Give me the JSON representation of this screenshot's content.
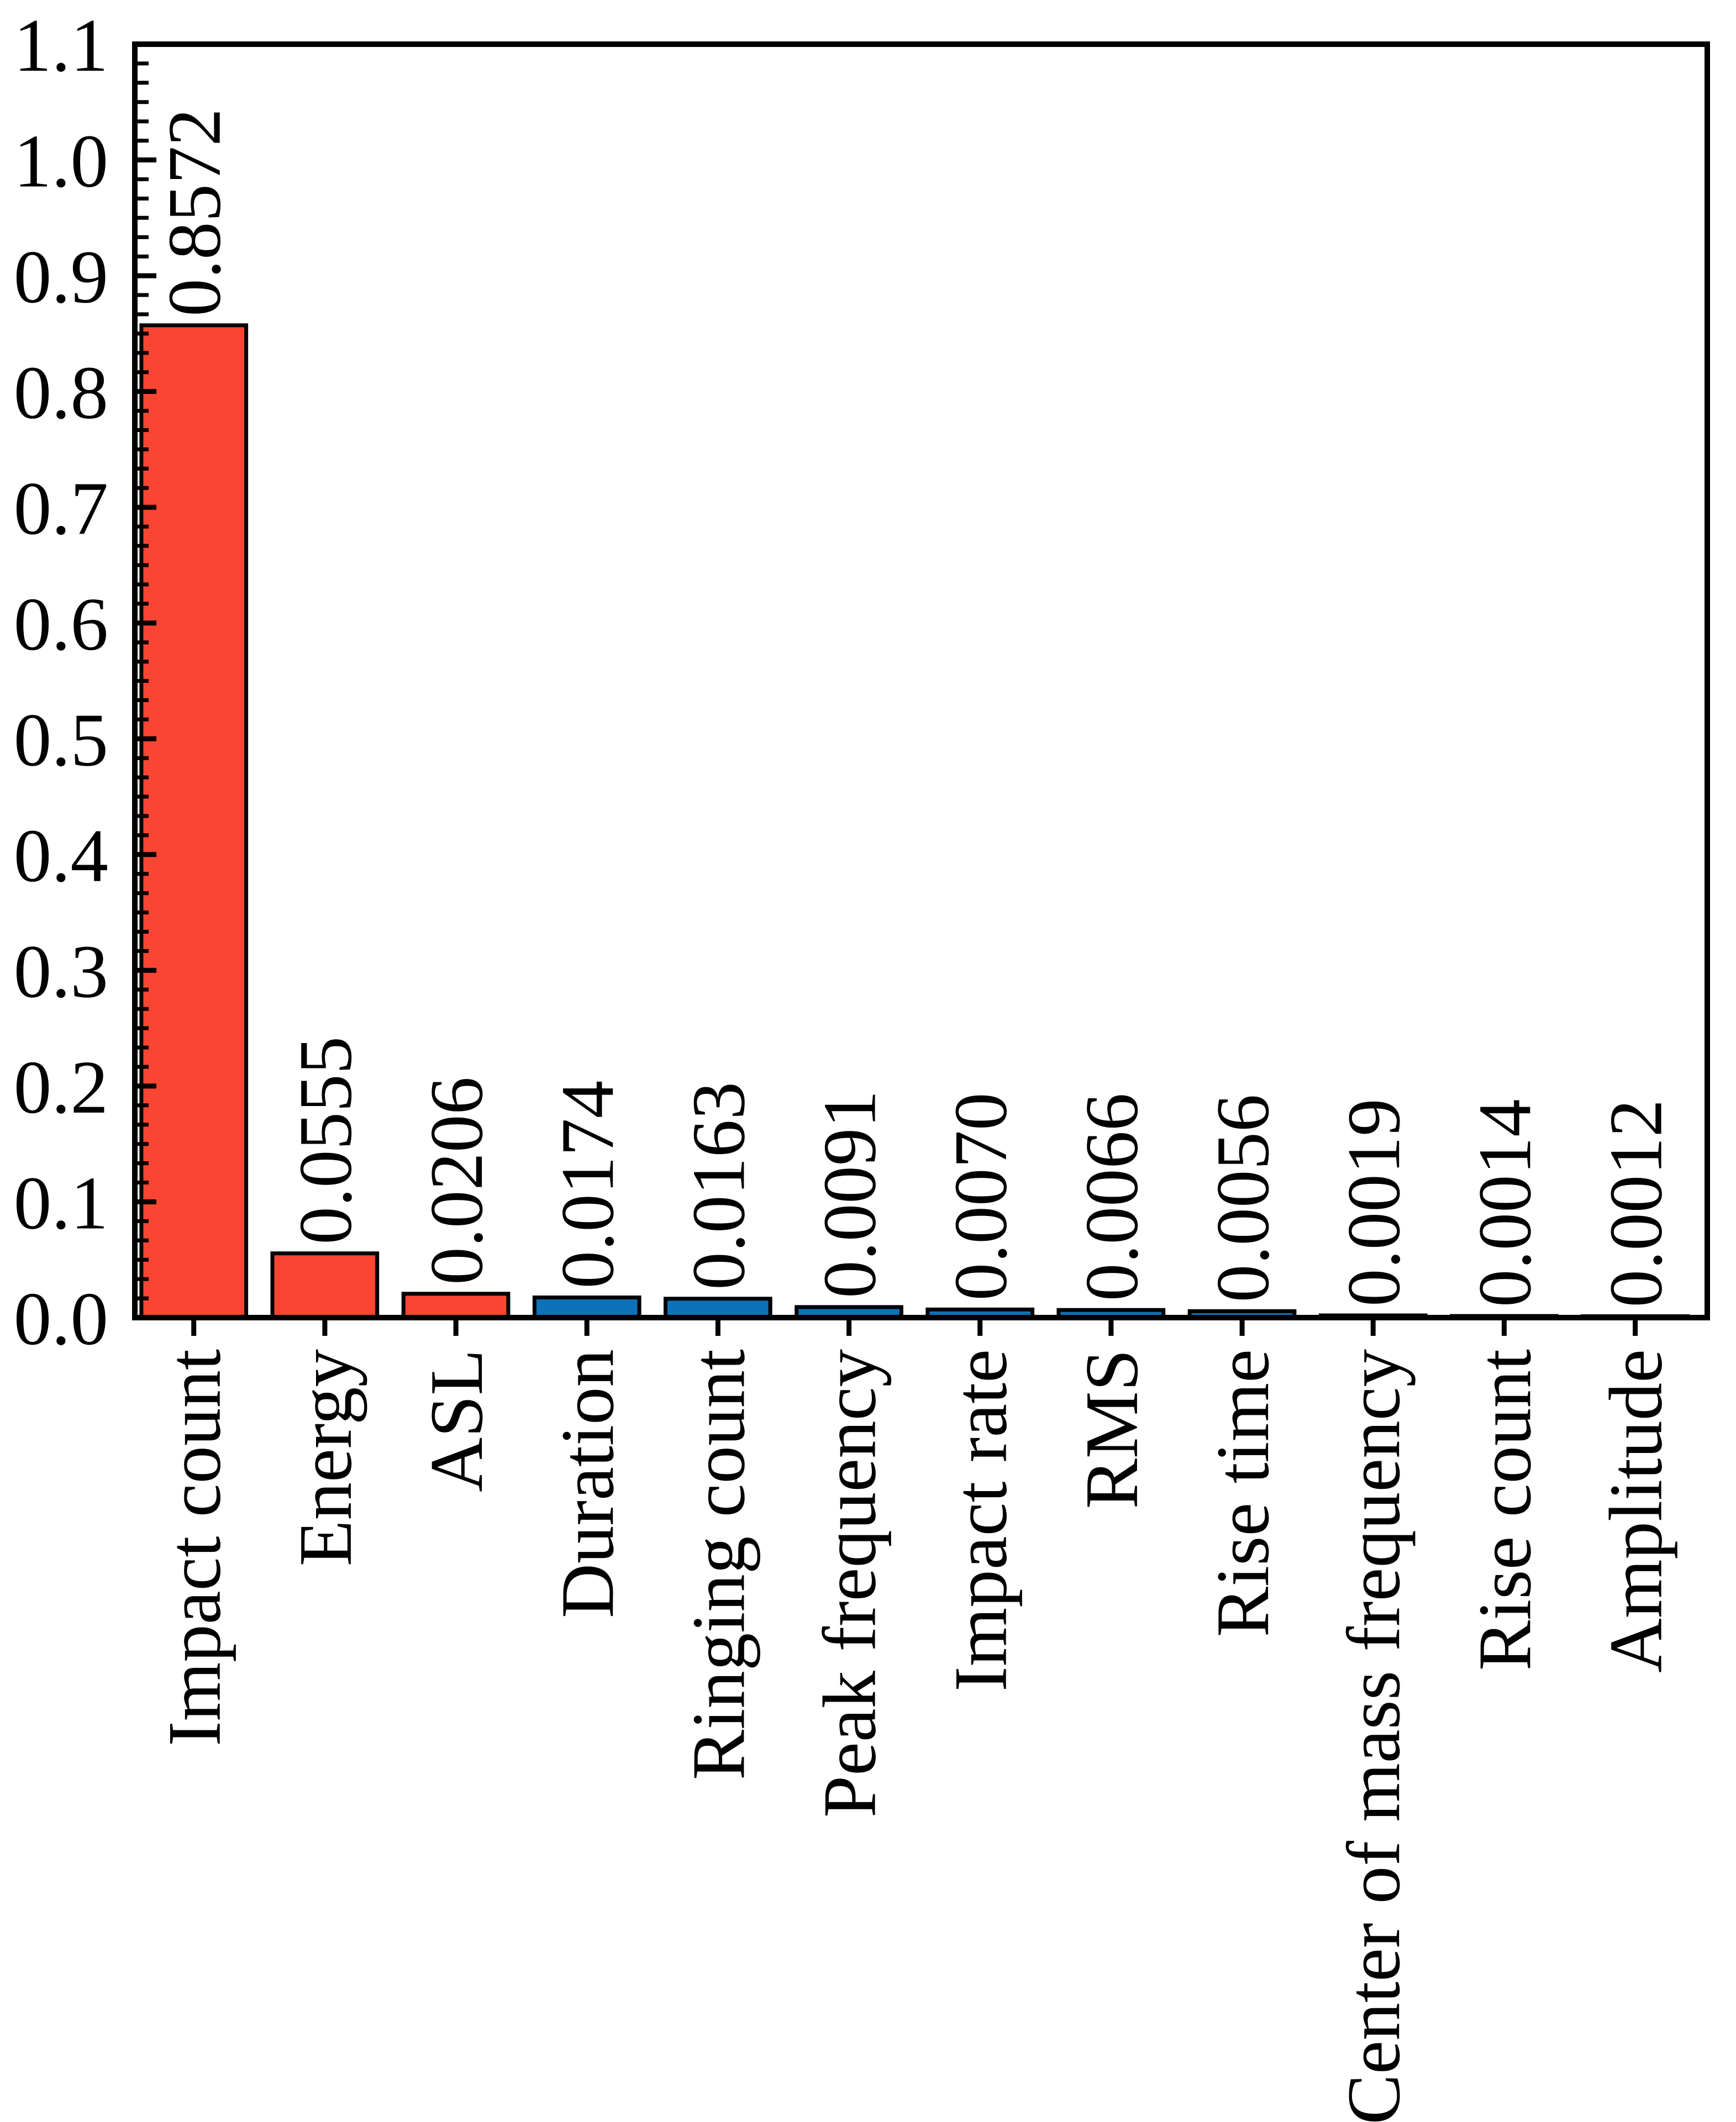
{
  "chart_data": {
    "type": "bar",
    "title": "",
    "xlabel": "",
    "ylabel": "",
    "categories": [
      "Impact count",
      "Energy",
      "ASL",
      "Duration",
      "Ringing count",
      "Peak frequency",
      "Impact rate",
      "RMS",
      "Rise time",
      "Center of mass frequency",
      "Rise count",
      "Amplitude"
    ],
    "values": [
      0.8572,
      0.0555,
      0.0206,
      0.0174,
      0.0163,
      0.0091,
      0.007,
      0.0066,
      0.0056,
      0.0019,
      0.0014,
      0.0012
    ],
    "value_labels": [
      "0.8572",
      "0.0555",
      "0.0206",
      "0.0174",
      "0.0163",
      "0.0091",
      "0.0070",
      "0.0066",
      "0.0056",
      "0.0019",
      "0.0014",
      "0.0012"
    ],
    "bar_colors": [
      "#F94632",
      "#F94632",
      "#F94632",
      "#0D72B7",
      "#0D72B7",
      "#0D72B7",
      "#0D72B7",
      "#0D72B7",
      "#0D72B7",
      "#0D72B7",
      "#0D72B7",
      "#0D72B7"
    ],
    "highlight_color": "#F94632",
    "base_color": "#0D72B7",
    "bar_edge_color": "#000000",
    "axis_color": "#000000",
    "text_color": "#000000",
    "ylim": [
      0.0,
      1.1
    ],
    "ytick_step": 0.1,
    "ytick_labels": [
      "0.0",
      "0.1",
      "0.2",
      "0.3",
      "0.4",
      "0.5",
      "0.6",
      "0.7",
      "0.8",
      "0.9",
      "1.0",
      "1.1"
    ],
    "minor_ticks_per_interval": 5,
    "xlim_units": [
      -0.45,
      11.55
    ],
    "bar_width_units": 0.8,
    "grid": false,
    "legend": null,
    "value_label_rotation_deg": 90,
    "xtick_label_rotation_deg": 90
  }
}
